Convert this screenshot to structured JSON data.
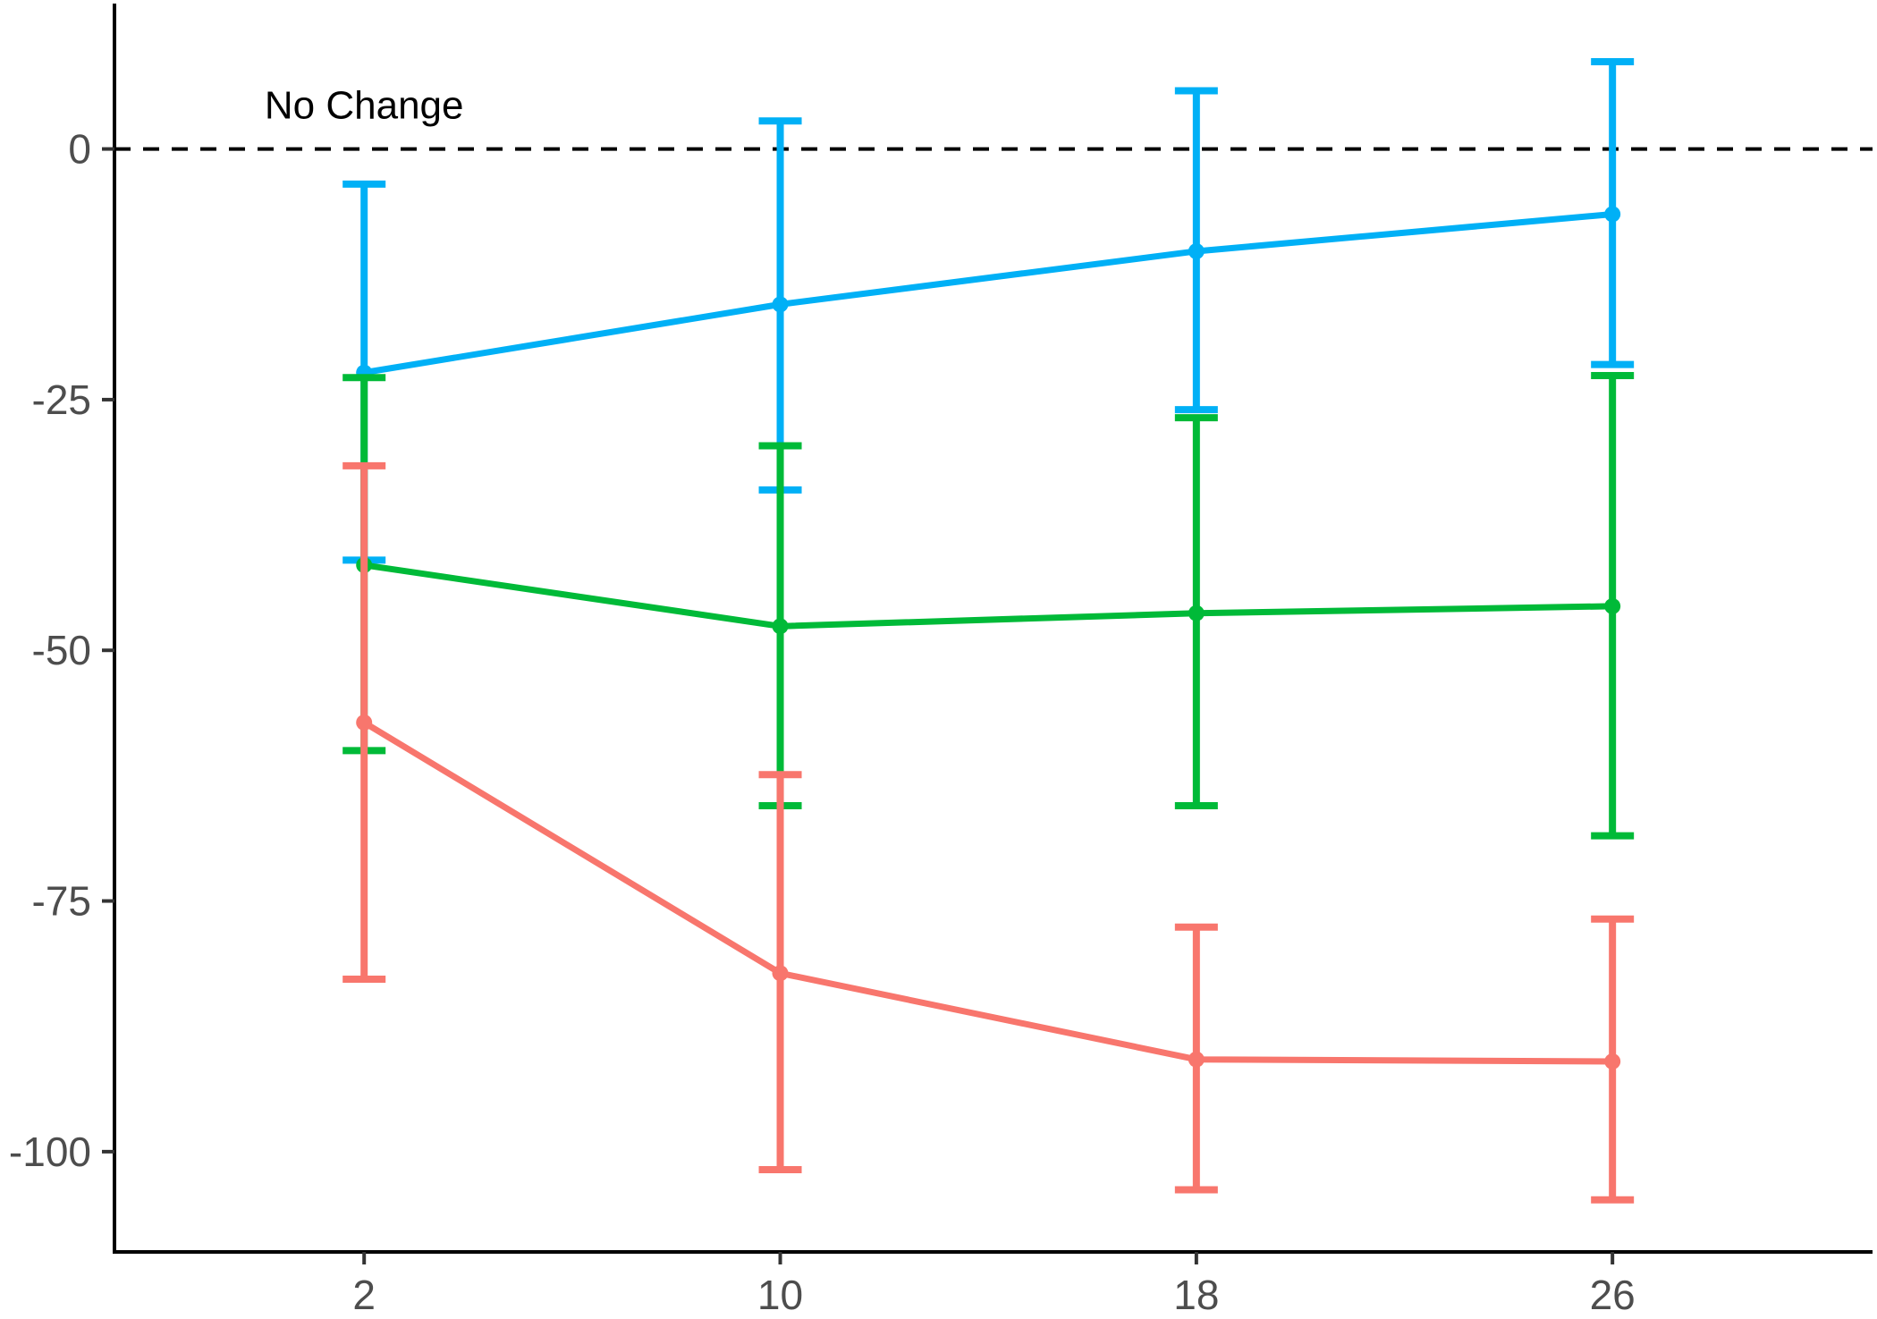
{
  "chart_data": {
    "type": "line",
    "title": "",
    "xlabel": "",
    "ylabel": "",
    "x": [
      2,
      10,
      18,
      26
    ],
    "x_tick_labels": [
      "2",
      "10",
      "18",
      "26"
    ],
    "xlim": [
      -2.8,
      31
    ],
    "y_ticks": [
      0,
      -25,
      -50,
      -75,
      -100
    ],
    "y_tick_labels": [
      "0",
      "-25",
      "-50",
      "-75",
      "-100"
    ],
    "ylim": [
      -110,
      14.5
    ],
    "grid": false,
    "legend": "none",
    "reference_line": {
      "y": 0,
      "style": "dashed",
      "color": "#000000",
      "label": "No Change",
      "label_x": 2
    },
    "series": [
      {
        "color": "#00B0F6",
        "values": [
          -22.3,
          -15.5,
          -10.2,
          -6.5
        ],
        "lower": [
          -41.0,
          -34.0,
          -26.0,
          -21.5
        ],
        "upper": [
          -3.5,
          2.8,
          5.8,
          8.7
        ]
      },
      {
        "color": "#00BA38",
        "values": [
          -41.5,
          -47.6,
          -46.3,
          -45.6
        ],
        "lower": [
          -60.0,
          -65.5,
          -65.5,
          -68.5
        ],
        "upper": [
          -22.8,
          -29.6,
          -26.8,
          -22.6
        ]
      },
      {
        "color": "#F8766D",
        "values": [
          -57.2,
          -82.2,
          -90.8,
          -91.0
        ],
        "lower": [
          -82.8,
          -101.8,
          -103.8,
          -104.8
        ],
        "upper": [
          -31.6,
          -62.4,
          -77.6,
          -76.8
        ]
      }
    ]
  }
}
